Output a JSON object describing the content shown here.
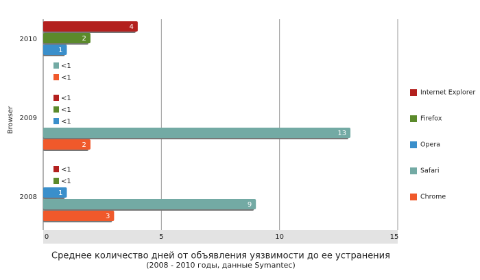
{
  "chart_data": {
    "type": "bar",
    "orientation": "horizontal",
    "title": "Среднее количество дней от объявления уязвимости до ее устранения",
    "subtitle": "(2008 - 2010 годы, данные Symantec)",
    "y_label": "Browser",
    "categories": [
      "2010",
      "2009",
      "2008"
    ],
    "series": [
      {
        "name": "Internet Explorer",
        "color": "#b3201e",
        "values": [
          4,
          0,
          0
        ],
        "value_labels": [
          "4",
          "<1",
          "<1"
        ]
      },
      {
        "name": "Firefox",
        "color": "#5b8a2b",
        "values": [
          2,
          0,
          0
        ],
        "value_labels": [
          "2",
          "<1",
          "<1"
        ]
      },
      {
        "name": "Opera",
        "color": "#3a8fcb",
        "values": [
          1,
          0,
          1
        ],
        "value_labels": [
          "1",
          "<1",
          "1"
        ]
      },
      {
        "name": "Safari",
        "color": "#73aaa4",
        "values": [
          0,
          13,
          9
        ],
        "value_labels": [
          "<1",
          "13",
          "9"
        ]
      },
      {
        "name": "Chrome",
        "color": "#f0592b",
        "values": [
          0,
          2,
          3
        ],
        "value_labels": [
          "<1",
          "2",
          "3"
        ]
      }
    ],
    "xlim": [
      0,
      15
    ],
    "xticks": [
      0,
      5,
      10,
      15
    ],
    "grid": true,
    "legend": "right"
  }
}
